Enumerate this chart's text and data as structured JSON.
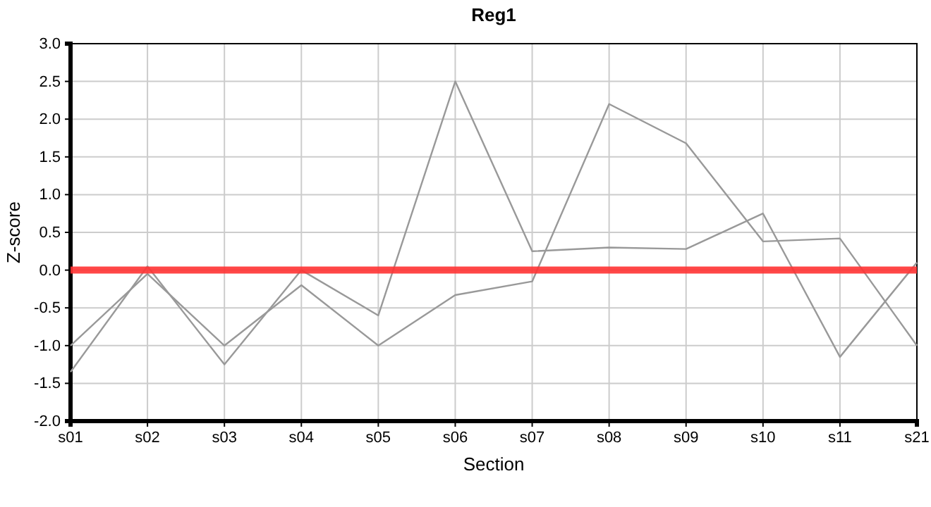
{
  "chart_data": {
    "type": "line",
    "title": "Reg1",
    "xlabel": "Section",
    "ylabel": "Z-score",
    "categories": [
      "s01",
      "s02",
      "s03",
      "s04",
      "s05",
      "s06",
      "s07",
      "s08",
      "s09",
      "s10",
      "s11",
      "s21"
    ],
    "series": [
      {
        "color": "#999999",
        "values": [
          -1.35,
          0.05,
          -1.25,
          0.0,
          -0.6,
          2.5,
          0.25,
          0.3,
          0.28,
          0.75,
          -1.15,
          0.1
        ]
      },
      {
        "color": "#999999",
        "values": [
          -1.0,
          -0.05,
          -1.0,
          -0.2,
          -1.0,
          -0.33,
          -0.15,
          2.2,
          1.68,
          0.38,
          0.42,
          -1.0
        ]
      }
    ],
    "ylim": [
      -2,
      3
    ],
    "yticks": [
      {
        "value": -2,
        "label": "-2.0"
      },
      {
        "value": -1.5,
        "label": "-1.5"
      },
      {
        "value": -1,
        "label": "-1.0"
      },
      {
        "value": -0.5,
        "label": "-0.5"
      },
      {
        "value": 0,
        "label": "0.0"
      },
      {
        "value": 0.5,
        "label": "0.5"
      },
      {
        "value": 1,
        "label": "1.0"
      },
      {
        "value": 1.5,
        "label": "1.5"
      },
      {
        "value": 2,
        "label": "2.0"
      },
      {
        "value": 2.5,
        "label": "2.5"
      },
      {
        "value": 3,
        "label": "3.0"
      }
    ],
    "grid": true,
    "marker": "none",
    "line_style": "solid",
    "ref_lines": [
      {
        "axis": "y",
        "value": 0,
        "color": "#ff3333"
      }
    ]
  }
}
